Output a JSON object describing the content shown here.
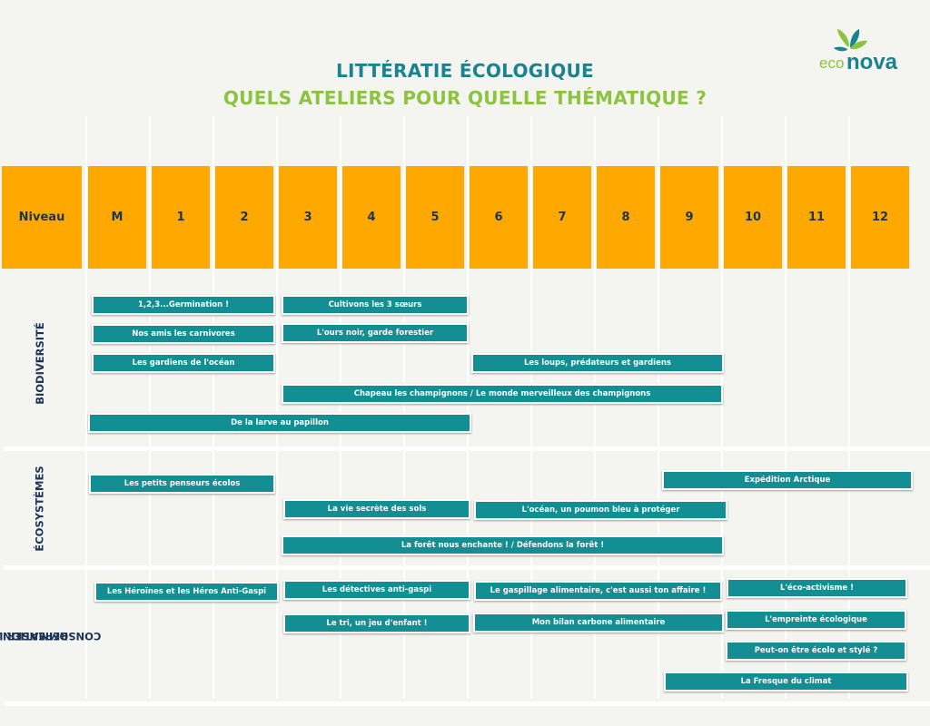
{
  "title": "LITTÉRATIE ÉCOLOGIQUE",
  "subtitle": "QUELS ATELIERS POUR QUELLE THÉMATIQUE ?",
  "logo": {
    "text_eco": "eco",
    "text_nova": "nova",
    "brand_green": "#8cc33f",
    "brand_teal": "#1b8290"
  },
  "colors": {
    "header_orange": "#ffa800",
    "bar_teal": "#138e92",
    "text_navy": "#1c3557"
  },
  "header": {
    "niveau": "Niveau",
    "levels": [
      "M",
      "1",
      "2",
      "3",
      "4",
      "5",
      "6",
      "7",
      "8",
      "9",
      "10",
      "11",
      "12"
    ]
  },
  "categories": {
    "biodiversite": "BIODIVERSITÉ",
    "ecosystemes": "ÉCOSYSTÈMES",
    "consommation_line1": "REPENSER LA",
    "consommation_line2": "CONSOMMATION"
  },
  "workshops": {
    "biodiversite": [
      "1,2,3...Germination !",
      "Cultivons les 3 sœurs",
      "Nos amis les carnivores",
      "L'ours noir, garde forestier",
      "Les gardiens de l'océan",
      "Les loups, prédateurs et gardiens",
      "Chapeau les champignons / Le monde merveilleux des champignons",
      "De la larve au papillon"
    ],
    "ecosystemes": [
      "Les petits penseurs écolos",
      "Expédition Arctique",
      "La vie secrète des sols",
      "L'océan, un poumon bleu à protéger",
      "La forêt nous enchante ! / Défendons la forêt !"
    ],
    "consommation": [
      "Les Héroïnes et les Héros Anti-Gaspi",
      "Les détectives anti-gaspi",
      "Le gaspillage alimentaire, c'est aussi ton affaire !",
      "L'éco-activisme !",
      "Le tri, un jeu d'enfant !",
      "Mon bilan carbone alimentaire",
      "L'empreinte écologique",
      "Peut-on être écolo et stylé ?",
      "La Fresque du climat"
    ]
  }
}
